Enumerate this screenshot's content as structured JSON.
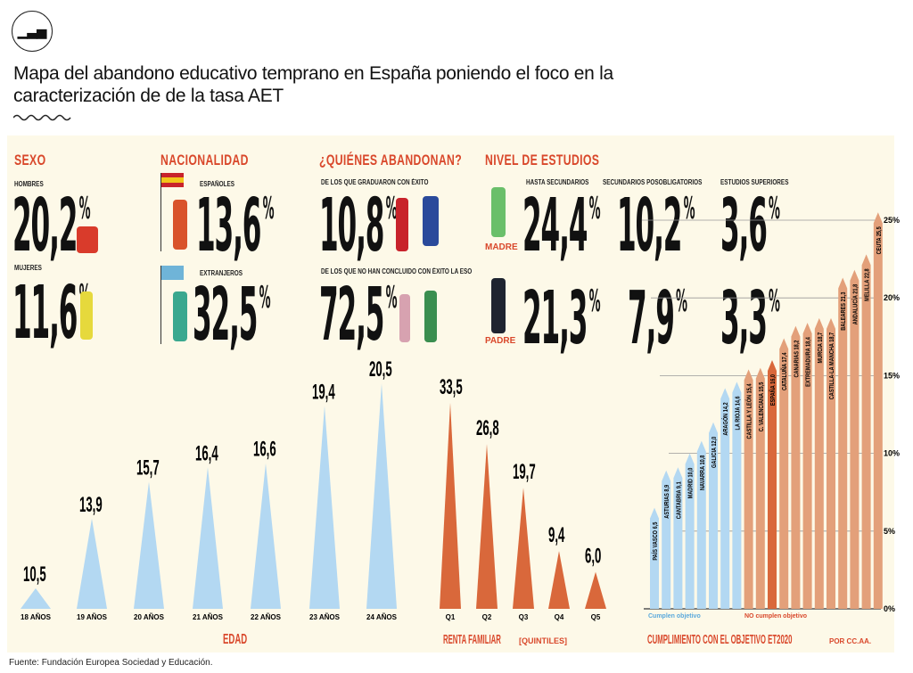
{
  "logo": {
    "icon": "bar-chart-logo"
  },
  "title": "Mapa del abandono educativo temprano en España poniendo el foco en la caracterización de de la tasa AET",
  "sexo": {
    "heading": "SEXO",
    "hombres_label": "HOMBRES",
    "hombres": "20,2",
    "mujeres_label": "MUJERES",
    "mujeres": "11,6"
  },
  "nacionalidad": {
    "heading": "NACIONALIDAD",
    "espanoles_label": "ESPAÑOLES",
    "espanoles": "13,6",
    "extranjeros_label": "EXTRANJEROS",
    "extranjeros": "32,5"
  },
  "quienes": {
    "heading": "¿QUIÉNES ABANDONAN?",
    "graduaron_label": "DE LOS QUE GRADUARON CON ÉXITO",
    "graduaron": "10,8",
    "no_eso_label": "DE LOS QUE NO HAN CONCLUIDO CON ÉXITO LA ESO",
    "no_eso": "72,5"
  },
  "estudios": {
    "heading": "NIVEL DE ESTUDIOS",
    "cols": [
      "HASTA SECUNDARIOS",
      "SECUNDARIOS POSOBLIGATORIOS",
      "ESTUDIOS SUPERIORES"
    ],
    "madre_label": "MADRE",
    "madre": [
      "24,4",
      "10,2",
      "3,6"
    ],
    "padre_label": "PADRE",
    "padre": [
      "21,3",
      "7,9",
      "3,3"
    ]
  },
  "pct": "%",
  "colors": {
    "accent": "#d9482b",
    "blue": "#b3d8f2",
    "orange": "#e3a07a",
    "spain": "#d9683b",
    "panel": "#fdf9e8"
  },
  "chart_data": [
    {
      "type": "bar",
      "title": "EDAD",
      "categories": [
        "18 AÑOS",
        "19 AÑOS",
        "20 AÑOS",
        "21 AÑOS",
        "22 AÑOS",
        "23 AÑOS",
        "24 AÑOS"
      ],
      "values": [
        10.5,
        13.9,
        15.7,
        16.4,
        16.6,
        19.4,
        20.5
      ],
      "labels": [
        "10,5",
        "13,9",
        "15,7",
        "16,4",
        "16,6",
        "19,4",
        "20,5"
      ]
    },
    {
      "type": "bar",
      "title": "RENTA FAMILIAR",
      "subtitle": "[QUINTILES]",
      "categories": [
        "Q1",
        "Q2",
        "Q3",
        "Q4",
        "Q5"
      ],
      "values": [
        33.5,
        26.8,
        19.7,
        9.4,
        6.0
      ],
      "labels": [
        "33,5",
        "26,8",
        "19,7",
        "9,4",
        "6,0"
      ]
    },
    {
      "type": "bar",
      "title": "CUMPLIMIENTO CON EL OBJETIVO ET2020",
      "subtitle": "POR CC.AA.",
      "ylim": [
        0,
        25
      ],
      "yticks": [
        "0%",
        "5%",
        "10%",
        "15%",
        "20%",
        "25%"
      ],
      "legend": [
        "Cumplen objetivo",
        "NO cumplen objetivo"
      ],
      "categories": [
        "PAÍS VASCO",
        "ASTURIAS",
        "CANTABRIA",
        "MADRID",
        "NAVARRA",
        "GALICIA",
        "ARAGÓN",
        "LA RIOJA",
        "CASTILLA Y LEÓN",
        "C. VALENCIANA",
        "ESPAÑA",
        "CATALUÑA",
        "CANARIAS",
        "EXTREMADURA",
        "MURCIA",
        "CASTILLA-LA MANCHA",
        "BALEARES",
        "ANDALUCÍA",
        "MELILLA",
        "CEUTA"
      ],
      "values": [
        6.5,
        8.9,
        9.1,
        10.0,
        10.8,
        12.0,
        14.2,
        14.6,
        15.4,
        15.5,
        16.0,
        17.4,
        18.2,
        18.4,
        18.7,
        18.7,
        21.3,
        21.8,
        22.8,
        25.5
      ],
      "labels": [
        "6,5",
        "8,9",
        "9,1",
        "10,0",
        "10,8",
        "12,0",
        "14,2",
        "14,6",
        "15,4",
        "15,5",
        "16,0",
        "17,4",
        "18,2",
        "18,4",
        "18,7",
        "18,7",
        "21,3",
        "21,8",
        "22,8",
        "25,5"
      ],
      "status": [
        "cumple",
        "cumple",
        "cumple",
        "cumple",
        "cumple",
        "cumple",
        "cumple",
        "cumple",
        "no",
        "no",
        "total",
        "no",
        "no",
        "no",
        "no",
        "no",
        "no",
        "no",
        "no",
        "no"
      ]
    }
  ],
  "footer": "Fuente: Fundación Europea Sociedad y Educación."
}
